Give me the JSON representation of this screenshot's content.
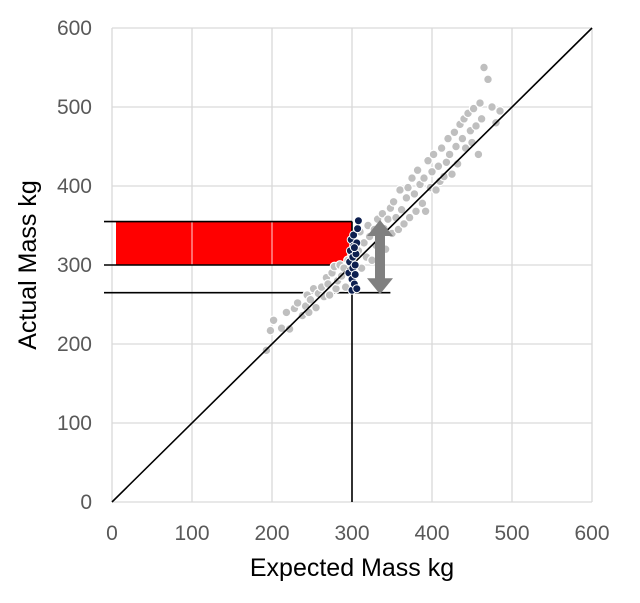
{
  "chart_data": {
    "type": "scatter",
    "title": "",
    "xlabel": "Expected Mass kg",
    "ylabel": "Actual Mass kg",
    "xlim": [
      0,
      600
    ],
    "ylim": [
      0,
      600
    ],
    "xticks": [
      "0",
      "100",
      "200",
      "300",
      "400",
      "500",
      "600"
    ],
    "yticks": [
      "0",
      "100",
      "200",
      "300",
      "400",
      "500",
      "600"
    ],
    "grid": true,
    "colors": {
      "grid": "#d9d9d9",
      "background_points": "#bfbfbf",
      "highlight_points": "#0d1f4f",
      "band": "#ff0000",
      "arrow": "#808080",
      "identity_line": "#000000"
    },
    "series": [
      {
        "role": "background",
        "points": [
          [
            193,
            192
          ],
          [
            198,
            217
          ],
          [
            202,
            230
          ],
          [
            212,
            220
          ],
          [
            218,
            240
          ],
          [
            222,
            219
          ],
          [
            228,
            245
          ],
          [
            232,
            252
          ],
          [
            238,
            236
          ],
          [
            242,
            248
          ],
          [
            244,
            262
          ],
          [
            246,
            240
          ],
          [
            248,
            256
          ],
          [
            252,
            270
          ],
          [
            255,
            246
          ],
          [
            258,
            264
          ],
          [
            262,
            272
          ],
          [
            265,
            260
          ],
          [
            268,
            284
          ],
          [
            270,
            276
          ],
          [
            272,
            262
          ],
          [
            275,
            290
          ],
          [
            278,
            298
          ],
          [
            280,
            270
          ],
          [
            282,
            280
          ],
          [
            285,
            300
          ],
          [
            287,
            286
          ],
          [
            290,
            296
          ],
          [
            292,
            272
          ],
          [
            295,
            306
          ],
          [
            298,
            292
          ],
          [
            300,
            312
          ],
          [
            302,
            330
          ],
          [
            305,
            300
          ],
          [
            308,
            318
          ],
          [
            310,
            342
          ],
          [
            312,
            296
          ],
          [
            315,
            328
          ],
          [
            318,
            310
          ],
          [
            320,
            350
          ],
          [
            322,
            336
          ],
          [
            325,
            306
          ],
          [
            328,
            345
          ],
          [
            330,
            325
          ],
          [
            332,
            358
          ],
          [
            335,
            330
          ],
          [
            338,
            365
          ],
          [
            340,
            346
          ],
          [
            342,
            320
          ],
          [
            345,
            358
          ],
          [
            348,
            372
          ],
          [
            350,
            340
          ],
          [
            352,
            380
          ],
          [
            355,
            360
          ],
          [
            358,
            345
          ],
          [
            360,
            395
          ],
          [
            362,
            370
          ],
          [
            365,
            352
          ],
          [
            368,
            385
          ],
          [
            370,
            398
          ],
          [
            372,
            360
          ],
          [
            375,
            410
          ],
          [
            378,
            390
          ],
          [
            380,
            368
          ],
          [
            382,
            420
          ],
          [
            385,
            402
          ],
          [
            388,
            378
          ],
          [
            390,
            410
          ],
          [
            392,
            368
          ],
          [
            395,
            432
          ],
          [
            398,
            398
          ],
          [
            400,
            418
          ],
          [
            402,
            440
          ],
          [
            405,
            395
          ],
          [
            408,
            425
          ],
          [
            410,
            406
          ],
          [
            412,
            448
          ],
          [
            415,
            412
          ],
          [
            418,
            430
          ],
          [
            420,
            460
          ],
          [
            422,
            440
          ],
          [
            425,
            415
          ],
          [
            428,
            468
          ],
          [
            430,
            450
          ],
          [
            432,
            428
          ],
          [
            435,
            478
          ],
          [
            438,
            460
          ],
          [
            440,
            485
          ],
          [
            442,
            448
          ],
          [
            445,
            492
          ],
          [
            448,
            470
          ],
          [
            450,
            455
          ],
          [
            452,
            498
          ],
          [
            455,
            476
          ],
          [
            458,
            440
          ],
          [
            460,
            505
          ],
          [
            462,
            485
          ],
          [
            465,
            550
          ],
          [
            470,
            535
          ],
          [
            475,
            500
          ],
          [
            480,
            480
          ],
          [
            485,
            495
          ]
        ]
      },
      {
        "role": "highlight",
        "points": [
          [
            296,
            290
          ],
          [
            297,
            304
          ],
          [
            298,
            318
          ],
          [
            299,
            332
          ],
          [
            300,
            268
          ],
          [
            300,
            282
          ],
          [
            301,
            296
          ],
          [
            301,
            310
          ],
          [
            302,
            324
          ],
          [
            302,
            338
          ],
          [
            303,
            276
          ],
          [
            304,
            300
          ],
          [
            305,
            314
          ],
          [
            306,
            328
          ],
          [
            307,
            346
          ],
          [
            308,
            356
          ],
          [
            304,
            288
          ],
          [
            306,
            270
          ],
          [
            303,
            322
          ]
        ]
      }
    ],
    "annotations": {
      "identity_line": [
        [
          0,
          0
        ],
        [
          600,
          600
        ]
      ],
      "band": {
        "x": [
          5,
          300
        ],
        "y": [
          300,
          355
        ]
      },
      "vertical_line_x": 300,
      "horizontal_lines": [
        {
          "y": 355,
          "x": [
            -10,
            300
          ]
        },
        {
          "y": 300,
          "x": [
            -10,
            300
          ]
        },
        {
          "y": 265,
          "x": [
            -10,
            348
          ]
        }
      ],
      "double_arrow": {
        "x": 335,
        "y": [
          263,
          357
        ]
      }
    }
  }
}
